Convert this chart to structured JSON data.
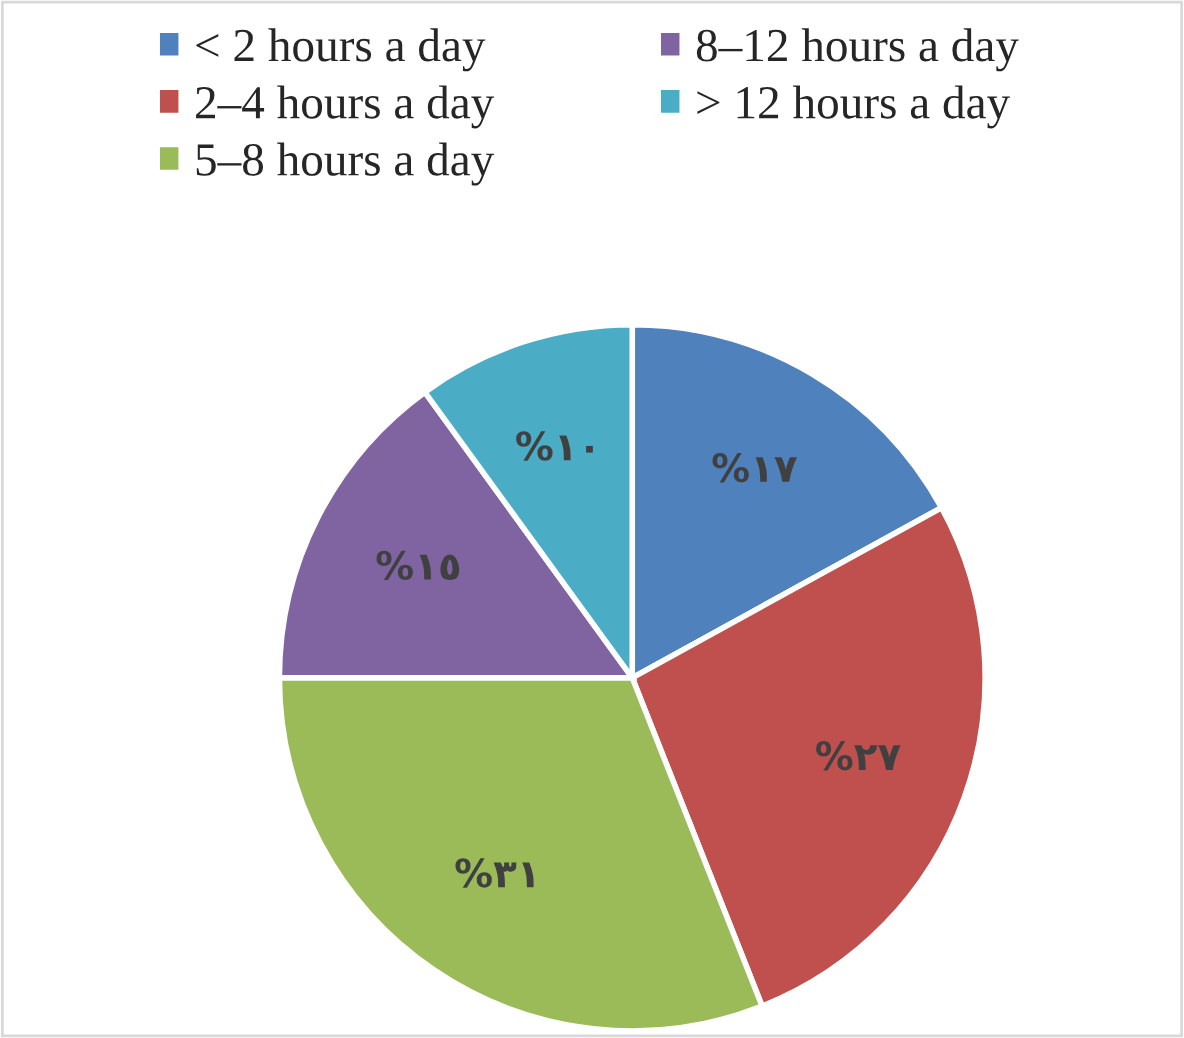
{
  "chart_data": {
    "type": "pie",
    "categories": [
      "< 2 hours a day",
      "2–4 hours a day",
      "5–8 hours a day",
      "8–12 hours a day",
      "> 12 hours a day"
    ],
    "values": [
      17,
      27,
      31,
      15,
      10
    ],
    "colors": [
      "#4f81bd",
      "#c0504d",
      "#9bbb59",
      "#8064a2",
      "#4bacc6"
    ],
    "value_labels": [
      "%١٧",
      "%٢٧",
      "%٣١",
      "%١٥",
      "%١٠"
    ],
    "legend": "top"
  }
}
